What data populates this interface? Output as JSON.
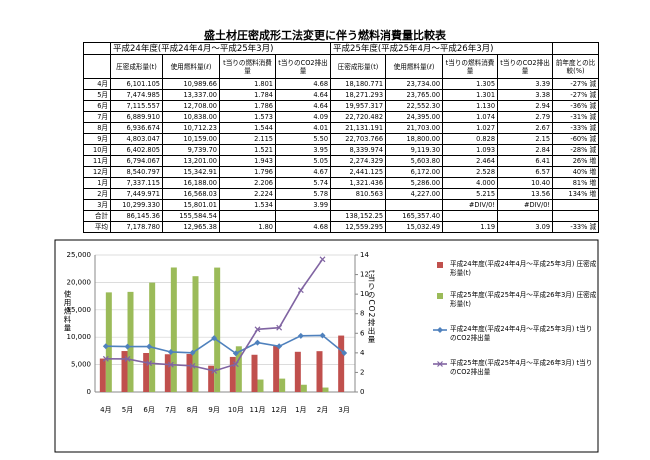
{
  "title": "盛土材圧密成形工法変更に伴う燃料消費量比較表",
  "table": {
    "group_headers": [
      "平成24年度(平成24年4月～平成25年3月)",
      "平成25年度(平成25年4月～平成26年3月)"
    ],
    "column_headers": [
      "圧密成形量(t)",
      "使用燃料量(ℓ)",
      "t当りの燃料消費量",
      "t当りのCO2排出量",
      "圧密成形量(t)",
      "使用燃料量(ℓ)",
      "t当りの燃料消費量",
      "t当りのCO2排出量",
      "前年度との比較(%)"
    ],
    "rows": [
      [
        "4月",
        "6,101.105",
        "10,989.66",
        "1.801",
        "4.68",
        "18,180.771",
        "23,734.00",
        "1.305",
        "3.39",
        "-27% 減"
      ],
      [
        "5月",
        "7,474.985",
        "13,337.00",
        "1.784",
        "4.64",
        "18,271.293",
        "23,765.00",
        "1.301",
        "3.38",
        "-27% 減"
      ],
      [
        "6月",
        "7,115.557",
        "12,708.00",
        "1.786",
        "4.64",
        "19,957.317",
        "22,552.30",
        "1.130",
        "2.94",
        "-36% 減"
      ],
      [
        "7月",
        "6,889.910",
        "10,838.00",
        "1.573",
        "4.09",
        "22,720.482",
        "24,395.00",
        "1.074",
        "2.79",
        "-31% 減"
      ],
      [
        "8月",
        "6,936.674",
        "10,712.23",
        "1.544",
        "4.01",
        "21,131.191",
        "21,703.00",
        "1.027",
        "2.67",
        "-33% 減"
      ],
      [
        "9月",
        "4,803.047",
        "10,159.00",
        "2.115",
        "5.50",
        "22,703.766",
        "18,800.00",
        "0.828",
        "2.15",
        "-60% 減"
      ],
      [
        "10月",
        "6,402.805",
        "9,739.70",
        "1.521",
        "3.95",
        "8,339.974",
        "9,119.30",
        "1.093",
        "2.84",
        "-28% 減"
      ],
      [
        "11月",
        "6,794.067",
        "13,201.00",
        "1.943",
        "5.05",
        "2,274.329",
        "5,603.80",
        "2.464",
        "6.41",
        "26% 増"
      ],
      [
        "12月",
        "8,540.797",
        "15,342.91",
        "1.796",
        "4.67",
        "2,441.125",
        "6,172.00",
        "2.528",
        "6.57",
        "40% 増"
      ],
      [
        "1月",
        "7,337.115",
        "16,188.00",
        "2.206",
        "5.74",
        "1,321.436",
        "5,286.00",
        "4.000",
        "10.40",
        "81% 増"
      ],
      [
        "2月",
        "7,449.971",
        "16,568.03",
        "2.224",
        "5.78",
        "810.563",
        "4,227.00",
        "5.215",
        "13.56",
        "134% 増"
      ],
      [
        "3月",
        "10,299.330",
        "15,801.01",
        "1.534",
        "3.99",
        null,
        null,
        "#DIV/0!",
        "#DIV/0!",
        null
      ],
      [
        "合計",
        "86,145.36",
        "155,584.54",
        null,
        null,
        "138,152.25",
        "165,357.40",
        null,
        null,
        null
      ],
      [
        "平均",
        "7,178.780",
        "12,965.38",
        "1.80",
        "4.68",
        "12,559.295",
        "15,032.49",
        "1.19",
        "3.09",
        "-33% 減"
      ]
    ]
  },
  "chart_data": {
    "type": "combo",
    "y_label": "使用燃料量",
    "y2_label": "t当りのCO2排出量",
    "categories": [
      "4月",
      "5月",
      "6月",
      "7月",
      "8月",
      "9月",
      "10月",
      "11月",
      "12月",
      "1月",
      "2月",
      "3月"
    ],
    "series": [
      {
        "name": "平成24年度(平成24年4月～平成25年3月) 圧密成形量(t)",
        "type": "bar",
        "color": "#c0504d",
        "values": [
          6101.105,
          7474.985,
          7115.557,
          6889.91,
          6936.674,
          4803.047,
          6402.805,
          6794.067,
          8540.797,
          7337.115,
          7449.971,
          10299.33
        ]
      },
      {
        "name": "平成25年度(平成25年4月～平成26年3月) 圧密成形量(t)",
        "type": "bar",
        "color": "#9bbb59",
        "values": [
          18180.771,
          18271.293,
          19957.317,
          22720.482,
          21131.191,
          22703.766,
          8339.974,
          2274.329,
          2441.125,
          1321.436,
          810.563,
          null
        ]
      },
      {
        "name": "平成24年度(平成24年4月～平成25年3月) t当りのCO2排出量",
        "type": "line",
        "axis": "y2",
        "marker": "diamond",
        "color": "#4f81bd",
        "values": [
          4.68,
          4.64,
          4.64,
          4.09,
          4.01,
          5.5,
          3.95,
          5.05,
          4.67,
          5.74,
          5.78,
          3.99
        ]
      },
      {
        "name": "平成25年度(平成25年4月～平成26年3月) t当りのCO2排出量",
        "type": "line",
        "axis": "y2",
        "marker": "x",
        "color": "#8064a2",
        "values": [
          3.39,
          3.38,
          2.94,
          2.79,
          2.67,
          2.15,
          2.84,
          6.41,
          6.57,
          10.4,
          13.56,
          null
        ]
      }
    ],
    "ylim": [
      0,
      25000
    ],
    "yticks": [
      0,
      {
        "value": 5000,
        "label": "5,000"
      },
      {
        "value": 10000,
        "label": "10,000"
      },
      {
        "value": 15000,
        "label": "15,000"
      },
      {
        "value": 20000,
        "label": "20,000"
      },
      {
        "value": 25000,
        "label": "25,000"
      }
    ],
    "y2lim": [
      0,
      14
    ],
    "y2ticks": [
      0,
      2,
      4,
      6,
      8,
      10,
      12,
      14
    ],
    "grid": true
  }
}
